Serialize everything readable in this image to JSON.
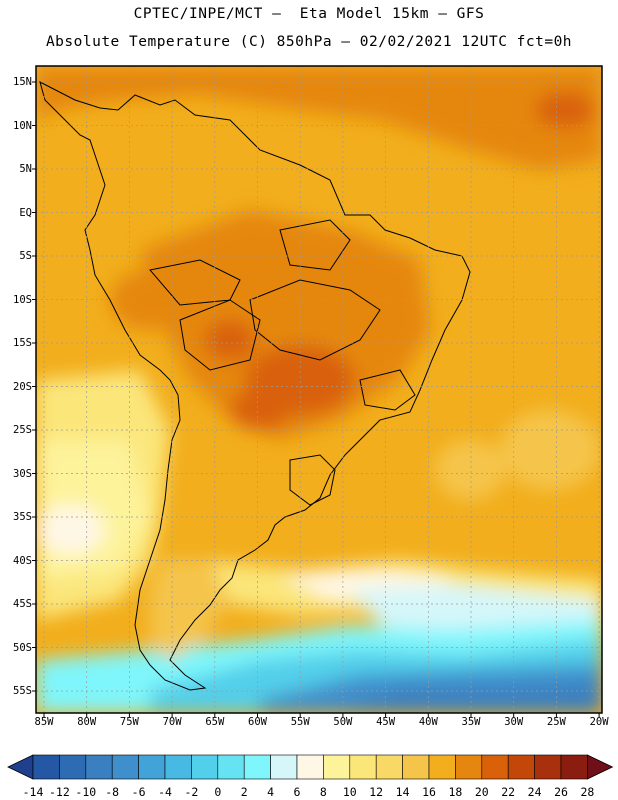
{
  "header": {
    "line1": "CPTEC/INPE/MCT –  Eta Model 15km – GFS",
    "line2": "Absolute Temperature (C) 850hPa – 02/02/2021 12UTC fct=0h"
  },
  "map": {
    "region": "South America",
    "lat_labels": [
      "15N",
      "10N",
      "5N",
      "EQ",
      "5S",
      "10S",
      "15S",
      "20S",
      "25S",
      "30S",
      "35S",
      "40S",
      "45S",
      "50S",
      "55S"
    ],
    "lon_labels": [
      "85W",
      "80W",
      "75W",
      "70W",
      "65W",
      "60W",
      "55W",
      "50W",
      "45W",
      "40W",
      "35W",
      "30W",
      "25W",
      "20W"
    ],
    "grid": true,
    "border_color": "#000000"
  },
  "colorbar": {
    "ticks": [
      "-14",
      "-12",
      "-10",
      "-8",
      "-6",
      "-4",
      "-2",
      "0",
      "2",
      "4",
      "6",
      "8",
      "10",
      "12",
      "14",
      "16",
      "18",
      "20",
      "22",
      "24",
      "26",
      "28"
    ],
    "colors": [
      "#1f3f8f",
      "#2457a4",
      "#2d6bb3",
      "#3a7fc0",
      "#3f8fcc",
      "#41a3d7",
      "#47b9e2",
      "#52cfea",
      "#66e3f2",
      "#7ff6fb",
      "#d5f7fa",
      "#fff7e6",
      "#fdf39b",
      "#fbe67a",
      "#f9d966",
      "#f5c54b",
      "#f2ae1c",
      "#e5870f",
      "#d9610a",
      "#c4470a",
      "#a8300c",
      "#8b1c10",
      "#6f0f18"
    ]
  }
}
